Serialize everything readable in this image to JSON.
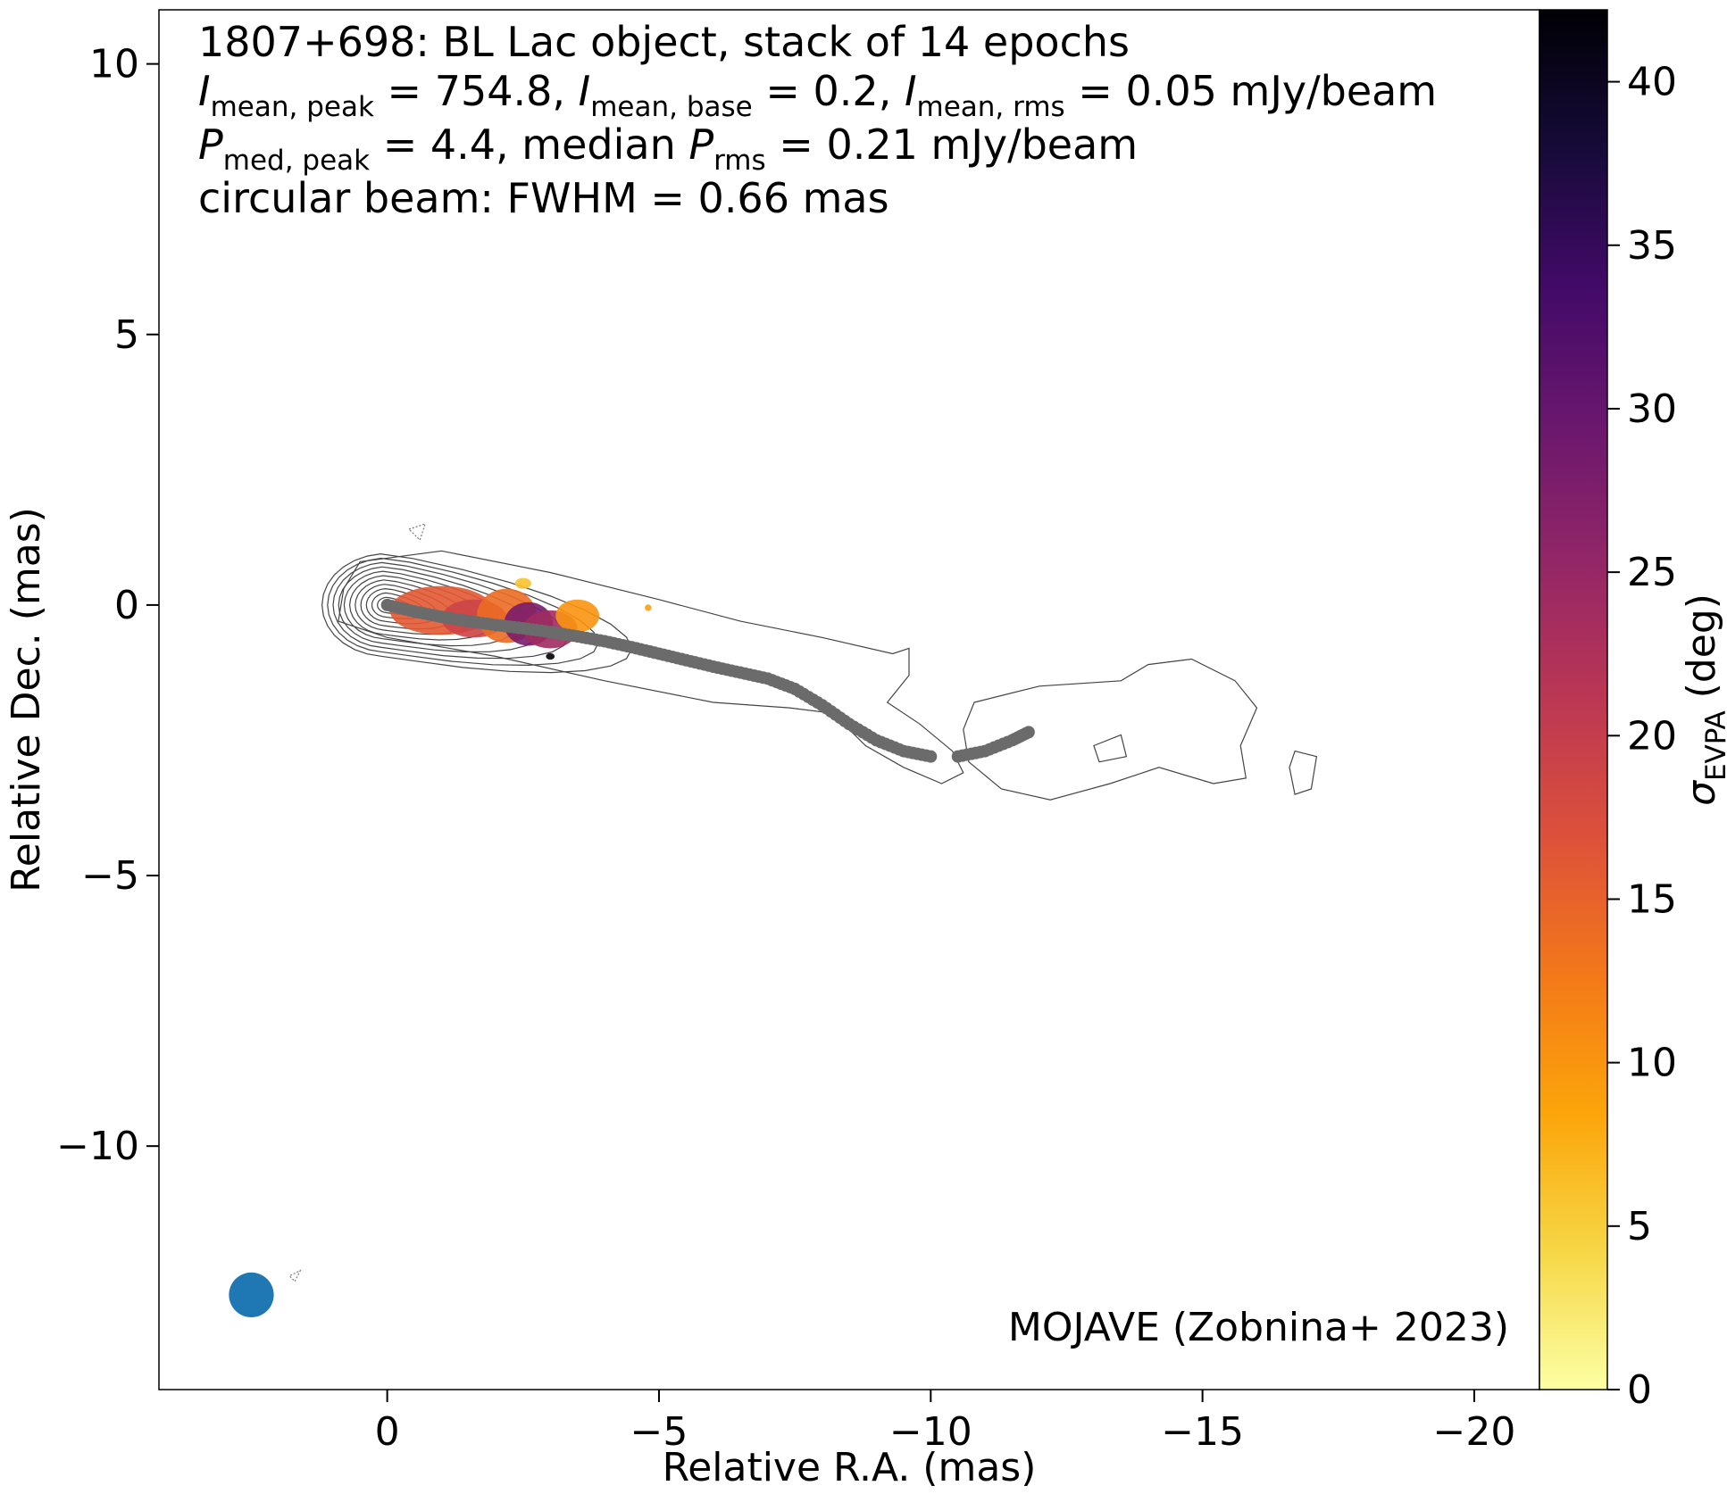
{
  "chart_data": {
    "type": "heatmap",
    "info": {
      "line1": "1807+698: BL Lac object, stack of 14 epochs",
      "line2": {
        "i_sym": "I",
        "peak_sub": "mean, peak",
        "peak_val": " = 754.8, ",
        "base_sub": "mean, base",
        "base_val": " = 0.2, ",
        "rms_sub": "mean, rms",
        "rms_val": " = 0.05 mJy/beam"
      },
      "line3": {
        "p_sym": "P",
        "peak_sub": "med, peak",
        "peak_val": " = 4.4, median ",
        "rms_sub": "rms",
        "rms_val": " = 0.21 mJy/beam"
      },
      "line4": "circular beam: FWHM = 0.66 mas"
    },
    "credit": "MOJAVE (Zobnina+ 2023)",
    "xlabel": "Relative R.A. (mas)",
    "ylabel": "Relative Dec. (mas)",
    "xlim": [
      4.2,
      -21.2
    ],
    "ylim": [
      -14.5,
      11
    ],
    "xticks": [
      0,
      -5,
      -10,
      -15,
      -20
    ],
    "xtick_labels": [
      "0",
      "−5",
      "−10",
      "−15",
      "−20"
    ],
    "yticks": [
      10,
      5,
      0,
      -5,
      -10
    ],
    "ytick_labels": [
      "10",
      "5",
      "0",
      "−5",
      "−10"
    ],
    "colorbar": {
      "label_sym": "σ",
      "label_sub": "EVPA",
      "label_unit": " (deg)",
      "range": [
        0,
        42.2
      ],
      "ticks": [
        0,
        5,
        10,
        15,
        20,
        25,
        30,
        35,
        40
      ],
      "tick_labels": [
        "0",
        "5",
        "10",
        "15",
        "20",
        "25",
        "30",
        "35",
        "40"
      ],
      "colormap": "inferno_r",
      "stops": [
        "#fcffa4",
        "#f6d746",
        "#fca50a",
        "#f37819",
        "#dd513a",
        "#bc3754",
        "#932667",
        "#6a176e",
        "#420a68",
        "#160b39",
        "#000004"
      ]
    },
    "ridge_line": {
      "color": "#6b6b6b",
      "points": [
        [
          0,
          0
        ],
        [
          -0.5,
          -0.12
        ],
        [
          -1,
          -0.22
        ],
        [
          -1.5,
          -0.3
        ],
        [
          -2,
          -0.37
        ],
        [
          -2.5,
          -0.43
        ],
        [
          -3,
          -0.5
        ],
        [
          -3.5,
          -0.58
        ],
        [
          -4,
          -0.67
        ],
        [
          -4.5,
          -0.78
        ],
        [
          -5,
          -0.9
        ],
        [
          -5.5,
          -1.02
        ],
        [
          -6,
          -1.14
        ],
        [
          -6.5,
          -1.25
        ],
        [
          -7,
          -1.36
        ],
        [
          -7.5,
          -1.55
        ],
        [
          -8,
          -1.85
        ],
        [
          -8.5,
          -2.2
        ],
        [
          -9,
          -2.5
        ],
        [
          -9.5,
          -2.7
        ],
        [
          -10,
          -2.8
        ]
      ],
      "points_outer": [
        [
          -10.5,
          -2.8
        ],
        [
          -11,
          -2.7
        ],
        [
          -11.5,
          -2.5
        ],
        [
          -11.8,
          -2.35
        ]
      ]
    },
    "polarization_patches": [
      {
        "x": -1.0,
        "y": -0.1,
        "sigma": 16,
        "rx": 0.95,
        "ry": 0.45
      },
      {
        "x": -1.6,
        "y": -0.25,
        "sigma": 19,
        "rx": 0.6,
        "ry": 0.35
      },
      {
        "x": -2.2,
        "y": -0.2,
        "sigma": 14,
        "rx": 0.55,
        "ry": 0.5
      },
      {
        "x": -2.6,
        "y": -0.35,
        "sigma": 28,
        "rx": 0.45,
        "ry": 0.4
      },
      {
        "x": -3.0,
        "y": -0.45,
        "sigma": 24,
        "rx": 0.5,
        "ry": 0.35
      },
      {
        "x": -3.5,
        "y": -0.2,
        "sigma": 10,
        "rx": 0.4,
        "ry": 0.3
      },
      {
        "x": -3.0,
        "y": -0.95,
        "sigma": 42,
        "rx": 0.08,
        "ry": 0.06
      },
      {
        "x": -2.5,
        "y": 0.4,
        "sigma": 6,
        "rx": 0.15,
        "ry": 0.1
      },
      {
        "x": -4.8,
        "y": -0.05,
        "sigma": 9,
        "rx": 0.06,
        "ry": 0.06
      }
    ],
    "beam": {
      "x": 2.5,
      "y": -12.75,
      "fwhm": 0.66,
      "color": "#1f77b4"
    }
  }
}
